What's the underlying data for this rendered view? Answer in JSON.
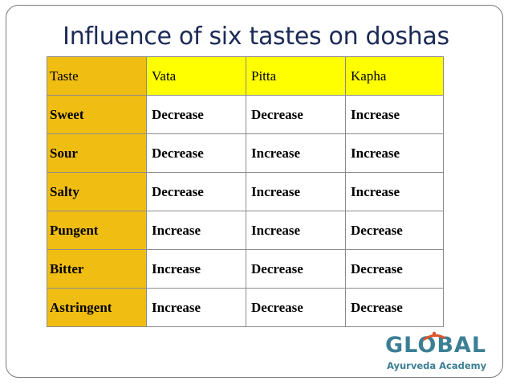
{
  "slide": {
    "title": "Influence of six tastes on doshas"
  },
  "table": {
    "headers": [
      "Taste",
      "Vata",
      "Pitta",
      "Kapha"
    ],
    "rows": [
      [
        "Sweet",
        "Decrease",
        "Decrease",
        "Increase"
      ],
      [
        "Sour",
        "Decrease",
        "Increase",
        "Increase"
      ],
      [
        "Salty",
        "Decrease",
        "Increase",
        "Increase"
      ],
      [
        "Pungent",
        "Increase",
        "Increase",
        "Decrease"
      ],
      [
        "Bitter",
        "Increase",
        "Decrease",
        "Decrease"
      ],
      [
        "Astringent",
        "Increase",
        "Decrease",
        "Decrease"
      ]
    ]
  },
  "logo": {
    "name": "GLOBAL",
    "tagline": "Ayurveda Academy"
  },
  "colors": {
    "header_fill": "#ffff00",
    "first_column_fill": "#f0bd12",
    "title_text": "#1c2a57",
    "logo_teal": "#3b7f95",
    "logo_accent": "#e0562a"
  }
}
